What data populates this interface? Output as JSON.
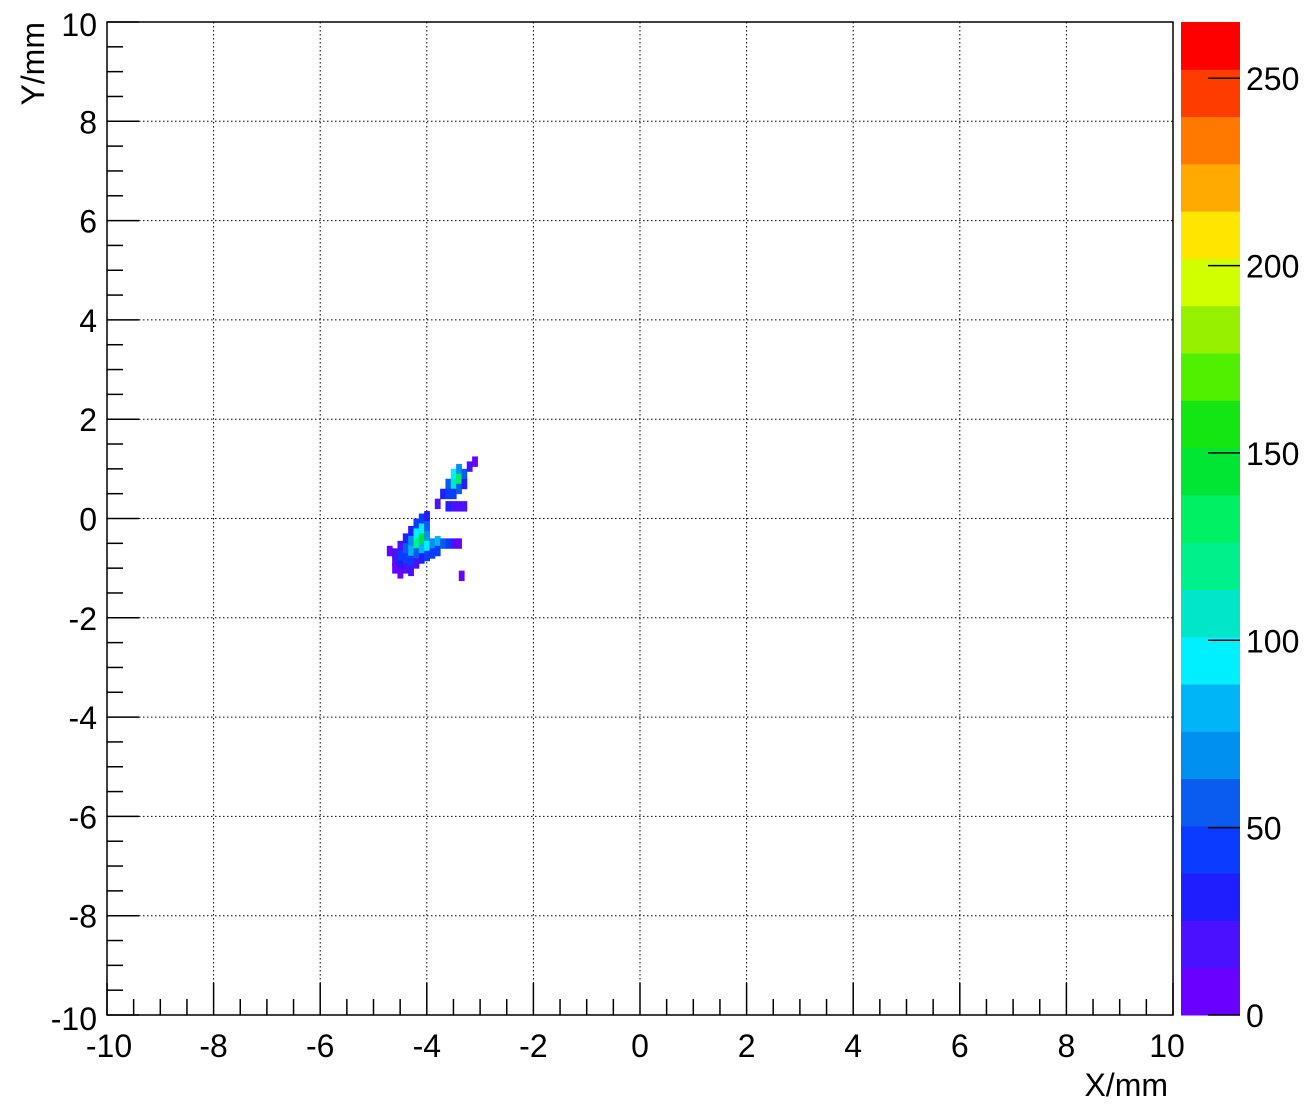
{
  "chart_data": {
    "type": "heatmap",
    "title": "",
    "xlabel": "X/mm",
    "ylabel": "Y/mm",
    "xlim": [
      -10,
      10
    ],
    "ylim": [
      -10,
      10
    ],
    "zlim": [
      0,
      265
    ],
    "grid": true,
    "x_ticks": [
      -10,
      -8,
      -6,
      -4,
      -2,
      0,
      2,
      4,
      6,
      8,
      10
    ],
    "y_ticks": [
      -10,
      -8,
      -6,
      -4,
      -2,
      0,
      2,
      4,
      6,
      8,
      10
    ],
    "z_ticks": [
      0,
      50,
      100,
      150,
      200,
      250
    ],
    "x_tick_labels": [
      "-10",
      "-8",
      "-6",
      "-4",
      "-2",
      "0",
      "2",
      "4",
      "6",
      "8",
      "10"
    ],
    "y_tick_labels": [
      "-10",
      "-8",
      "-6",
      "-4",
      "-2",
      "0",
      "2",
      "4",
      "6",
      "8",
      "10"
    ],
    "z_tick_labels": [
      "0",
      "50",
      "100",
      "150",
      "200",
      "250"
    ],
    "palette": [
      "#6a00ff",
      "#4a10ff",
      "#1e1eff",
      "#0a3cff",
      "#0a5cf0",
      "#0090f0",
      "#00b4f8",
      "#00f0ff",
      "#00e6c8",
      "#00f08c",
      "#00f064",
      "#00e632",
      "#14e614",
      "#50f000",
      "#96f000",
      "#d2ff00",
      "#ffe600",
      "#ffaa00",
      "#ff7800",
      "#ff3c00",
      "#ff0000"
    ],
    "bins": [
      {
        "x": -4.7,
        "y": -0.65,
        "z": 8
      },
      {
        "x": -4.6,
        "y": -0.7,
        "z": 15
      },
      {
        "x": -4.6,
        "y": -0.85,
        "z": 20
      },
      {
        "x": -4.6,
        "y": -1.0,
        "z": 12
      },
      {
        "x": -4.5,
        "y": -0.55,
        "z": 25
      },
      {
        "x": -4.5,
        "y": -0.75,
        "z": 40
      },
      {
        "x": -4.5,
        "y": -0.95,
        "z": 30
      },
      {
        "x": -4.5,
        "y": -1.1,
        "z": 10
      },
      {
        "x": -4.4,
        "y": -0.4,
        "z": 30
      },
      {
        "x": -4.4,
        "y": -0.6,
        "z": 55
      },
      {
        "x": -4.4,
        "y": -0.8,
        "z": 45
      },
      {
        "x": -4.4,
        "y": -1.0,
        "z": 20
      },
      {
        "x": -4.3,
        "y": -0.25,
        "z": 35
      },
      {
        "x": -4.3,
        "y": -0.45,
        "z": 70
      },
      {
        "x": -4.3,
        "y": -0.65,
        "z": 80
      },
      {
        "x": -4.3,
        "y": -0.85,
        "z": 40
      },
      {
        "x": -4.3,
        "y": -1.05,
        "z": 15
      },
      {
        "x": -4.2,
        "y": -0.1,
        "z": 40
      },
      {
        "x": -4.2,
        "y": -0.3,
        "z": 90
      },
      {
        "x": -4.2,
        "y": -0.5,
        "z": 120
      },
      {
        "x": -4.2,
        "y": -0.7,
        "z": 60
      },
      {
        "x": -4.2,
        "y": -0.9,
        "z": 25
      },
      {
        "x": -4.1,
        "y": 0.0,
        "z": 50
      },
      {
        "x": -4.1,
        "y": -0.2,
        "z": 100
      },
      {
        "x": -4.1,
        "y": -0.4,
        "z": 140
      },
      {
        "x": -4.1,
        "y": -0.6,
        "z": 85
      },
      {
        "x": -4.1,
        "y": -0.8,
        "z": 35
      },
      {
        "x": -4.0,
        "y": 0.05,
        "z": 30
      },
      {
        "x": -4.0,
        "y": -0.15,
        "z": 60
      },
      {
        "x": -4.0,
        "y": -0.35,
        "z": 75
      },
      {
        "x": -4.0,
        "y": -0.55,
        "z": 90
      },
      {
        "x": -4.0,
        "y": -0.75,
        "z": 40
      },
      {
        "x": -3.9,
        "y": -0.5,
        "z": 70
      },
      {
        "x": -3.9,
        "y": -0.7,
        "z": 45
      },
      {
        "x": -3.8,
        "y": -0.45,
        "z": 85
      },
      {
        "x": -3.8,
        "y": -0.65,
        "z": 50
      },
      {
        "x": -3.7,
        "y": -0.5,
        "z": 60
      },
      {
        "x": -3.6,
        "y": -0.5,
        "z": 40
      },
      {
        "x": -3.5,
        "y": -0.5,
        "z": 25
      },
      {
        "x": -3.4,
        "y": -0.5,
        "z": 12
      },
      {
        "x": -3.35,
        "y": -1.15,
        "z": 8
      },
      {
        "x": -3.8,
        "y": 0.3,
        "z": 20
      },
      {
        "x": -3.7,
        "y": 0.5,
        "z": 35
      },
      {
        "x": -3.6,
        "y": 0.7,
        "z": 60
      },
      {
        "x": -3.6,
        "y": 0.5,
        "z": 40
      },
      {
        "x": -3.5,
        "y": 0.9,
        "z": 90
      },
      {
        "x": -3.5,
        "y": 0.7,
        "z": 110
      },
      {
        "x": -3.5,
        "y": 0.5,
        "z": 50
      },
      {
        "x": -3.4,
        "y": 1.0,
        "z": 70
      },
      {
        "x": -3.4,
        "y": 0.8,
        "z": 130
      },
      {
        "x": -3.4,
        "y": 0.6,
        "z": 60
      },
      {
        "x": -3.3,
        "y": 0.9,
        "z": 55
      },
      {
        "x": -3.3,
        "y": 0.7,
        "z": 35
      },
      {
        "x": -3.2,
        "y": 1.05,
        "z": 20
      },
      {
        "x": -3.1,
        "y": 1.15,
        "z": 10
      },
      {
        "x": -3.6,
        "y": 0.25,
        "z": 30
      },
      {
        "x": -3.5,
        "y": 0.25,
        "z": 25
      },
      {
        "x": -3.4,
        "y": 0.25,
        "z": 20
      },
      {
        "x": -3.3,
        "y": 0.25,
        "z": 15
      }
    ],
    "bin_width": 0.1,
    "bin_height": 0.2
  }
}
